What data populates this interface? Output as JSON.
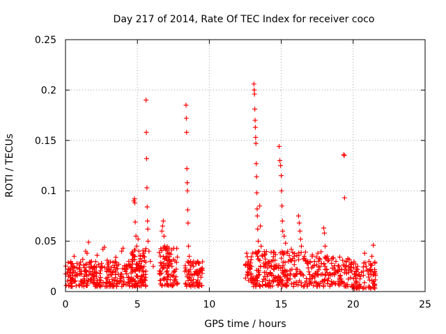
{
  "chart_data": {
    "type": "scatter",
    "title": "Day 217 of 2014, Rate Of TEC Index for receiver coco",
    "xlabel": "GPS time / hours",
    "ylabel": "ROTI / TECUs",
    "xlim": [
      0,
      25
    ],
    "ylim": [
      0,
      0.25
    ],
    "x_ticks": [
      0,
      5,
      10,
      15,
      20,
      25
    ],
    "y_ticks": [
      0,
      0.05,
      0.1,
      0.15,
      0.2,
      0.25
    ],
    "x_tick_labels": [
      "0",
      "5",
      "10",
      "15",
      "20",
      "25"
    ],
    "y_tick_labels": [
      "0",
      "0.05",
      "0.1",
      "0.15",
      "0.2",
      "0.25"
    ],
    "grid": true,
    "marker": "+",
    "series": [
      {
        "name": "ROTI",
        "color": "#ff0000",
        "points": [
          [
            0.2,
            0.015
          ],
          [
            0.3,
            0.022
          ],
          [
            0.5,
            0.018
          ],
          [
            0.6,
            0.035
          ],
          [
            0.8,
            0.028
          ],
          [
            1.0,
            0.02
          ],
          [
            1.2,
            0.032
          ],
          [
            1.4,
            0.04
          ],
          [
            1.5,
            0.038
          ],
          [
            1.6,
            0.049
          ],
          [
            1.8,
            0.03
          ],
          [
            2.0,
            0.025
          ],
          [
            2.2,
            0.036
          ],
          [
            2.5,
            0.028
          ],
          [
            2.6,
            0.042
          ],
          [
            2.7,
            0.044
          ],
          [
            2.9,
            0.031
          ],
          [
            3.1,
            0.022
          ],
          [
            3.3,
            0.029
          ],
          [
            3.5,
            0.034
          ],
          [
            3.7,
            0.027
          ],
          [
            3.9,
            0.04
          ],
          [
            4.0,
            0.043
          ],
          [
            4.2,
            0.025
          ],
          [
            4.4,
            0.03
          ],
          [
            4.6,
            0.038
          ],
          [
            4.75,
            0.09
          ],
          [
            4.8,
            0.092
          ],
          [
            4.82,
            0.088
          ],
          [
            4.85,
            0.069
          ],
          [
            4.9,
            0.055
          ],
          [
            4.95,
            0.045
          ],
          [
            5.05,
            0.052
          ],
          [
            5.1,
            0.04
          ],
          [
            5.2,
            0.035
          ],
          [
            5.3,
            0.03
          ],
          [
            5.6,
            0.19
          ],
          [
            5.62,
            0.158
          ],
          [
            5.64,
            0.132
          ],
          [
            5.66,
            0.103
          ],
          [
            5.68,
            0.084
          ],
          [
            5.7,
            0.07
          ],
          [
            5.72,
            0.062
          ],
          [
            5.74,
            0.05
          ],
          [
            5.8,
            0.04
          ],
          [
            5.9,
            0.03
          ],
          [
            6.1,
            0.025
          ],
          [
            6.6,
            0.02
          ],
          [
            6.7,
            0.06
          ],
          [
            6.75,
            0.065
          ],
          [
            6.8,
            0.07
          ],
          [
            6.85,
            0.055
          ],
          [
            6.9,
            0.045
          ],
          [
            7.0,
            0.035
          ],
          [
            7.1,
            0.038
          ],
          [
            7.2,
            0.03
          ],
          [
            7.4,
            0.025
          ],
          [
            7.6,
            0.02
          ],
          [
            8.3,
            0.02
          ],
          [
            8.38,
            0.185
          ],
          [
            8.4,
            0.172
          ],
          [
            8.42,
            0.158
          ],
          [
            8.44,
            0.122
          ],
          [
            8.46,
            0.108
          ],
          [
            8.48,
            0.1
          ],
          [
            8.5,
            0.081
          ],
          [
            8.52,
            0.068
          ],
          [
            8.55,
            0.045
          ],
          [
            8.6,
            0.035
          ],
          [
            8.7,
            0.03
          ],
          [
            8.9,
            0.025
          ],
          [
            9.1,
            0.02
          ],
          [
            9.3,
            0.028
          ],
          [
            9.4,
            0.022
          ],
          [
            9.5,
            0.018
          ],
          [
            12.6,
            0.038
          ],
          [
            12.7,
            0.03
          ],
          [
            12.8,
            0.022
          ],
          [
            12.9,
            0.018
          ],
          [
            13.1,
            0.206
          ],
          [
            13.12,
            0.2
          ],
          [
            13.14,
            0.196
          ],
          [
            13.16,
            0.181
          ],
          [
            13.18,
            0.17
          ],
          [
            13.2,
            0.163
          ],
          [
            13.22,
            0.153
          ],
          [
            13.24,
            0.147
          ],
          [
            13.26,
            0.127
          ],
          [
            13.28,
            0.114
          ],
          [
            13.3,
            0.098
          ],
          [
            13.32,
            0.082
          ],
          [
            13.34,
            0.075
          ],
          [
            13.36,
            0.062
          ],
          [
            13.4,
            0.05
          ],
          [
            13.45,
            0.04
          ],
          [
            13.5,
            0.085
          ],
          [
            13.55,
            0.065
          ],
          [
            13.6,
            0.045
          ],
          [
            13.7,
            0.035
          ],
          [
            13.9,
            0.025
          ],
          [
            14.1,
            0.028
          ],
          [
            14.3,
            0.03
          ],
          [
            14.5,
            0.022
          ],
          [
            14.85,
            0.144
          ],
          [
            14.9,
            0.13
          ],
          [
            14.95,
            0.125
          ],
          [
            15.0,
            0.115
          ],
          [
            15.02,
            0.1
          ],
          [
            15.05,
            0.085
          ],
          [
            15.08,
            0.07
          ],
          [
            15.1,
            0.06
          ],
          [
            15.2,
            0.055
          ],
          [
            15.3,
            0.048
          ],
          [
            15.4,
            0.038
          ],
          [
            15.5,
            0.03
          ],
          [
            15.7,
            0.042
          ],
          [
            15.9,
            0.035
          ],
          [
            16.2,
            0.075
          ],
          [
            16.25,
            0.068
          ],
          [
            16.3,
            0.06
          ],
          [
            16.35,
            0.052
          ],
          [
            16.4,
            0.045
          ],
          [
            16.6,
            0.035
          ],
          [
            16.8,
            0.028
          ],
          [
            17.0,
            0.03
          ],
          [
            17.2,
            0.025
          ],
          [
            17.5,
            0.02
          ],
          [
            17.8,
            0.028
          ],
          [
            17.95,
            0.063
          ],
          [
            18.0,
            0.058
          ],
          [
            18.05,
            0.045
          ],
          [
            18.2,
            0.035
          ],
          [
            18.5,
            0.028
          ],
          [
            18.8,
            0.03
          ],
          [
            19.0,
            0.025
          ],
          [
            19.2,
            0.022
          ],
          [
            19.35,
            0.136
          ],
          [
            19.38,
            0.135
          ],
          [
            19.4,
            0.093
          ],
          [
            19.5,
            0.03
          ],
          [
            19.7,
            0.025
          ],
          [
            19.9,
            0.02
          ],
          [
            20.1,
            0.018
          ],
          [
            20.3,
            0.022
          ],
          [
            20.5,
            0.015
          ],
          [
            20.7,
            0.02
          ],
          [
            20.8,
            0.038
          ],
          [
            20.9,
            0.025
          ],
          [
            21.1,
            0.03
          ],
          [
            21.3,
            0.035
          ],
          [
            21.4,
            0.046
          ],
          [
            21.5,
            0.02
          ]
        ],
        "dense_clusters": [
          {
            "x_range": [
              0.0,
              4.7
            ],
            "y_range": [
              0.005,
              0.03
            ],
            "count": 260
          },
          {
            "x_range": [
              4.6,
              5.6
            ],
            "y_range": [
              0.005,
              0.045
            ],
            "count": 90
          },
          {
            "x_range": [
              6.5,
              7.8
            ],
            "y_range": [
              0.005,
              0.045
            ],
            "count": 90
          },
          {
            "x_range": [
              8.3,
              9.6
            ],
            "y_range": [
              0.005,
              0.03
            ],
            "count": 70
          },
          {
            "x_range": [
              12.5,
              13.0
            ],
            "y_range": [
              0.008,
              0.035
            ],
            "count": 25
          },
          {
            "x_range": [
              13.0,
              14.8
            ],
            "y_range": [
              0.005,
              0.04
            ],
            "count": 110
          },
          {
            "x_range": [
              14.8,
              17.8
            ],
            "y_range": [
              0.005,
              0.04
            ],
            "count": 150
          },
          {
            "x_range": [
              17.8,
              19.8
            ],
            "y_range": [
              0.005,
              0.035
            ],
            "count": 90
          },
          {
            "x_range": [
              19.8,
              21.6
            ],
            "y_range": [
              0.003,
              0.03
            ],
            "count": 90
          }
        ]
      }
    ]
  }
}
